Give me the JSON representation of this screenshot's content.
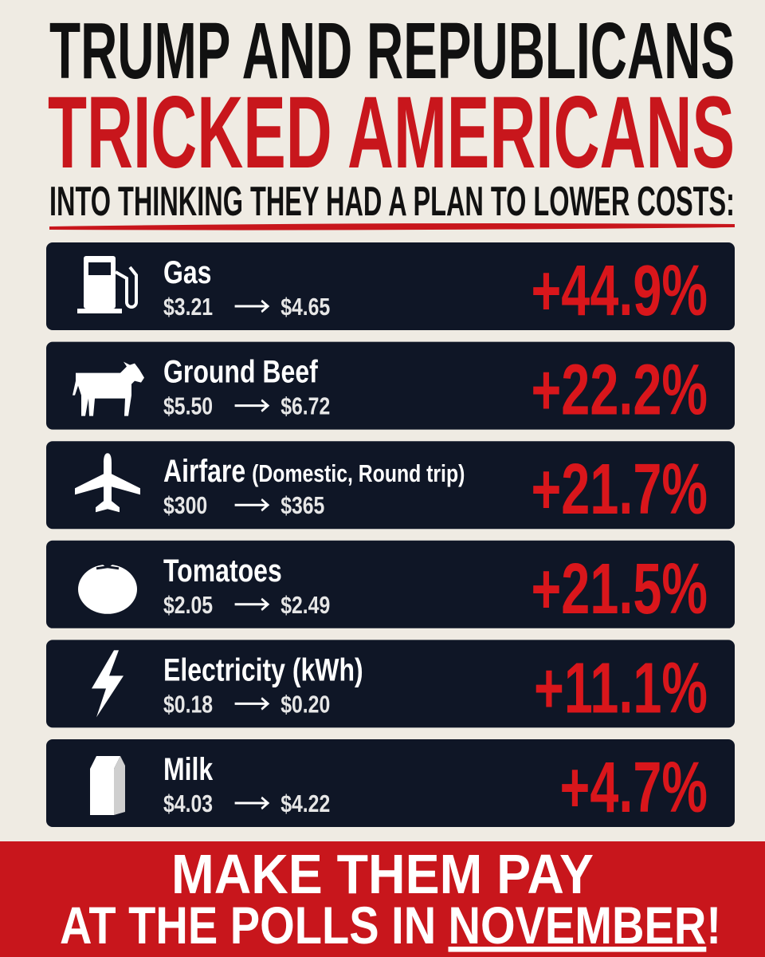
{
  "header": {
    "line1": "TRUMP AND REPUBLICANS",
    "line2": "TRICKED AMERICANS",
    "line3": "INTO THINKING THEY HAD A PLAN TO LOWER COSTS:"
  },
  "items": [
    {
      "name": "Gas",
      "from": "$3.21",
      "to": "$4.65",
      "change": "+44.9%"
    },
    {
      "name": "Ground Beef",
      "from": "$5.50",
      "to": "$6.72",
      "change": "+22.2%"
    },
    {
      "name": "Airfare",
      "note": "(Domestic, Round trip)",
      "from": "$300",
      "to": "$365",
      "change": "+21.7%"
    },
    {
      "name": "Tomatoes",
      "from": "$2.05",
      "to": "$2.49",
      "change": "+21.5%"
    },
    {
      "name": "Electricity (kWh)",
      "from": "$0.18",
      "to": "$0.20",
      "change": "+11.1%"
    },
    {
      "name": "Milk",
      "from": "$4.03",
      "to": "$4.22",
      "change": "+4.7%"
    }
  ],
  "footer": {
    "line1": "MAKE THEM PAY",
    "line2_start": "AT THE POLLS IN",
    "line2_emphasis": "NOVEMBER",
    "line2_end": "!"
  }
}
